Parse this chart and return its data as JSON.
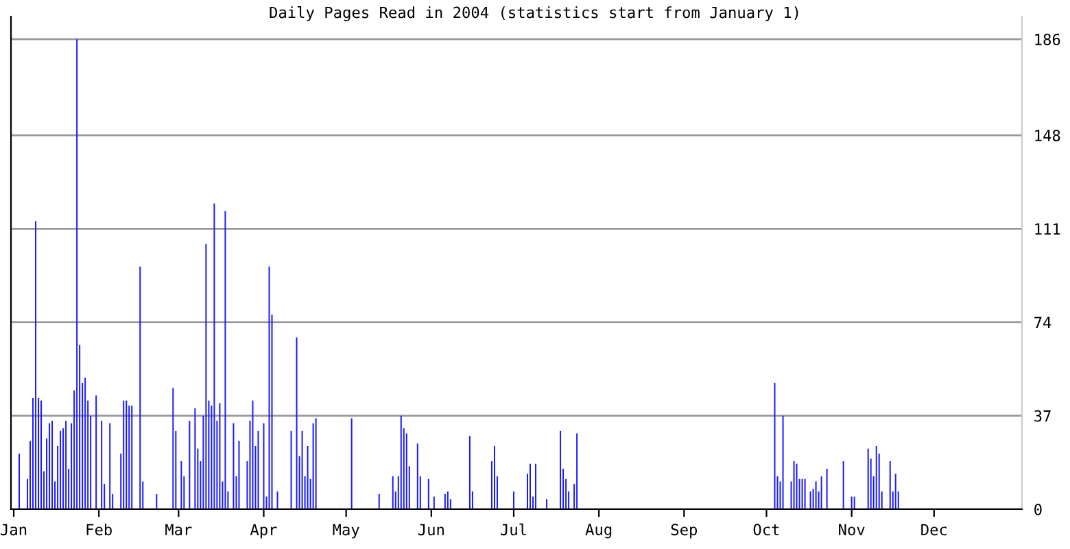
{
  "chart_data": {
    "type": "bar",
    "title": "Daily Pages Read in 2004 (statistics start from January 1)",
    "x": [
      "2004-01-01",
      "2004-01-02",
      "2004-01-03",
      "2004-01-04",
      "2004-01-05",
      "2004-01-06",
      "2004-01-07",
      "2004-01-08",
      "2004-01-09",
      "2004-01-10",
      "2004-01-11",
      "2004-01-12",
      "2004-01-13",
      "2004-01-14",
      "2004-01-15",
      "2004-01-16",
      "2004-01-17",
      "2004-01-18",
      "2004-01-19",
      "2004-01-20",
      "2004-01-21",
      "2004-01-22",
      "2004-01-23",
      "2004-01-24",
      "2004-01-25",
      "2004-01-26",
      "2004-01-27",
      "2004-01-28",
      "2004-01-29",
      "2004-01-30",
      "2004-01-31",
      "2004-02-01",
      "2004-02-02",
      "2004-02-03",
      "2004-02-04",
      "2004-02-05",
      "2004-02-06",
      "2004-02-07",
      "2004-02-08",
      "2004-02-09",
      "2004-02-10",
      "2004-02-11",
      "2004-02-12",
      "2004-02-13",
      "2004-02-14",
      "2004-02-15",
      "2004-02-16",
      "2004-02-17",
      "2004-02-18",
      "2004-02-19",
      "2004-02-20",
      "2004-02-21",
      "2004-02-22",
      "2004-02-23",
      "2004-02-24",
      "2004-02-25",
      "2004-02-26",
      "2004-02-27",
      "2004-02-28",
      "2004-02-29",
      "2004-03-01",
      "2004-03-02",
      "2004-03-03",
      "2004-03-04",
      "2004-03-05",
      "2004-03-06",
      "2004-03-07",
      "2004-03-08",
      "2004-03-09",
      "2004-03-10",
      "2004-03-11",
      "2004-03-12",
      "2004-03-13",
      "2004-03-14",
      "2004-03-15",
      "2004-03-16",
      "2004-03-17",
      "2004-03-18",
      "2004-03-19",
      "2004-03-20",
      "2004-03-21",
      "2004-03-22",
      "2004-03-23",
      "2004-03-24",
      "2004-03-25",
      "2004-03-26",
      "2004-03-27",
      "2004-03-28",
      "2004-03-29",
      "2004-03-30",
      "2004-03-31",
      "2004-04-01",
      "2004-04-02",
      "2004-04-03",
      "2004-04-04",
      "2004-04-05",
      "2004-04-06",
      "2004-04-07",
      "2004-04-08",
      "2004-04-09",
      "2004-04-10",
      "2004-04-11",
      "2004-04-12",
      "2004-04-13",
      "2004-04-14",
      "2004-04-15",
      "2004-04-16",
      "2004-04-17",
      "2004-04-18",
      "2004-04-19",
      "2004-04-20",
      "2004-04-21",
      "2004-04-22",
      "2004-04-23",
      "2004-04-24",
      "2004-04-25",
      "2004-04-26",
      "2004-04-27",
      "2004-04-28",
      "2004-04-29",
      "2004-04-30",
      "2004-05-01",
      "2004-05-02",
      "2004-05-03",
      "2004-05-04",
      "2004-05-05",
      "2004-05-06",
      "2004-05-07",
      "2004-05-08",
      "2004-05-09",
      "2004-05-10",
      "2004-05-11",
      "2004-05-12",
      "2004-05-13",
      "2004-05-14",
      "2004-05-15",
      "2004-05-16",
      "2004-05-17",
      "2004-05-18",
      "2004-05-19",
      "2004-05-20",
      "2004-05-21",
      "2004-05-22",
      "2004-05-23",
      "2004-05-24",
      "2004-05-25",
      "2004-05-26",
      "2004-05-27",
      "2004-05-28",
      "2004-05-29",
      "2004-05-30",
      "2004-05-31",
      "2004-06-01",
      "2004-06-02",
      "2004-06-03",
      "2004-06-04",
      "2004-06-05",
      "2004-06-06",
      "2004-06-07",
      "2004-06-08",
      "2004-06-09",
      "2004-06-10",
      "2004-06-11",
      "2004-06-12",
      "2004-06-13",
      "2004-06-14",
      "2004-06-15",
      "2004-06-16",
      "2004-06-17",
      "2004-06-18",
      "2004-06-19",
      "2004-06-20",
      "2004-06-21",
      "2004-06-22",
      "2004-06-23",
      "2004-06-24",
      "2004-06-25",
      "2004-06-26",
      "2004-06-27",
      "2004-06-28",
      "2004-06-29",
      "2004-06-30",
      "2004-07-01",
      "2004-07-02",
      "2004-07-03",
      "2004-07-04",
      "2004-07-05",
      "2004-07-06",
      "2004-07-07",
      "2004-07-08",
      "2004-07-09",
      "2004-07-10",
      "2004-07-11",
      "2004-07-12",
      "2004-07-13",
      "2004-07-14",
      "2004-07-15",
      "2004-07-16",
      "2004-07-17",
      "2004-07-18",
      "2004-07-19",
      "2004-07-20",
      "2004-07-21",
      "2004-07-22",
      "2004-07-23",
      "2004-07-24",
      "2004-07-25",
      "2004-07-26",
      "2004-07-27",
      "2004-07-28",
      "2004-07-29",
      "2004-07-30",
      "2004-07-31",
      "2004-08-01",
      "2004-08-02",
      "2004-08-03",
      "2004-08-04",
      "2004-08-05",
      "2004-08-06",
      "2004-08-07",
      "2004-08-08",
      "2004-08-09",
      "2004-08-10",
      "2004-08-11",
      "2004-08-12",
      "2004-08-13",
      "2004-08-14",
      "2004-08-15",
      "2004-08-16",
      "2004-08-17",
      "2004-08-18",
      "2004-08-19",
      "2004-08-20",
      "2004-08-21",
      "2004-08-22",
      "2004-08-23",
      "2004-08-24",
      "2004-08-25",
      "2004-08-26",
      "2004-08-27",
      "2004-08-28",
      "2004-08-29",
      "2004-08-30",
      "2004-08-31",
      "2004-09-01",
      "2004-09-02",
      "2004-09-03",
      "2004-09-04",
      "2004-09-05",
      "2004-09-06",
      "2004-09-07",
      "2004-09-08",
      "2004-09-09",
      "2004-09-10",
      "2004-09-11",
      "2004-09-12",
      "2004-09-13",
      "2004-09-14",
      "2004-09-15",
      "2004-09-16",
      "2004-09-17",
      "2004-09-18",
      "2004-09-19",
      "2004-09-20",
      "2004-09-21",
      "2004-09-22",
      "2004-09-23",
      "2004-09-24",
      "2004-09-25",
      "2004-09-26",
      "2004-09-27",
      "2004-09-28",
      "2004-09-29",
      "2004-09-30",
      "2004-10-01",
      "2004-10-02",
      "2004-10-03",
      "2004-10-04",
      "2004-10-05",
      "2004-10-06",
      "2004-10-07",
      "2004-10-08",
      "2004-10-09",
      "2004-10-10",
      "2004-10-11",
      "2004-10-12",
      "2004-10-13",
      "2004-10-14",
      "2004-10-15",
      "2004-10-16",
      "2004-10-17",
      "2004-10-18",
      "2004-10-19",
      "2004-10-20",
      "2004-10-21",
      "2004-10-22",
      "2004-10-23",
      "2004-10-24",
      "2004-10-25",
      "2004-10-26",
      "2004-10-27",
      "2004-10-28",
      "2004-10-29",
      "2004-10-30",
      "2004-10-31",
      "2004-11-01",
      "2004-11-02",
      "2004-11-03",
      "2004-11-04",
      "2004-11-05",
      "2004-11-06",
      "2004-11-07",
      "2004-11-08",
      "2004-11-09",
      "2004-11-10",
      "2004-11-11",
      "2004-11-12",
      "2004-11-13",
      "2004-11-14",
      "2004-11-15",
      "2004-11-16",
      "2004-11-17",
      "2004-11-18",
      "2004-11-19",
      "2004-11-20",
      "2004-11-21",
      "2004-11-22",
      "2004-11-23",
      "2004-11-24",
      "2004-11-25",
      "2004-11-26",
      "2004-11-27",
      "2004-11-28",
      "2004-11-29",
      "2004-11-30",
      "2004-12-01",
      "2004-12-02",
      "2004-12-03",
      "2004-12-04",
      "2004-12-05",
      "2004-12-06",
      "2004-12-07",
      "2004-12-08",
      "2004-12-09",
      "2004-12-10",
      "2004-12-11",
      "2004-12-12",
      "2004-12-13",
      "2004-12-14",
      "2004-12-15",
      "2004-12-16",
      "2004-12-17",
      "2004-12-18",
      "2004-12-19",
      "2004-12-20",
      "2004-12-21",
      "2004-12-22",
      "2004-12-23",
      "2004-12-24",
      "2004-12-25",
      "2004-12-26",
      "2004-12-27",
      "2004-12-28",
      "2004-12-29",
      "2004-12-30",
      "2004-12-31"
    ],
    "values": [
      0,
      0,
      22,
      0,
      0,
      12,
      27,
      44,
      114,
      44,
      43,
      15,
      28,
      34,
      35,
      11,
      25,
      31,
      32,
      35,
      16,
      34,
      47,
      186,
      65,
      50,
      52,
      43,
      37,
      0,
      45,
      0,
      35,
      10,
      0,
      34,
      6,
      0,
      0,
      22,
      43,
      43,
      41,
      41,
      0,
      0,
      96,
      11,
      0,
      0,
      0,
      0,
      6,
      0,
      0,
      0,
      0,
      0,
      48,
      31,
      0,
      19,
      13,
      0,
      35,
      0,
      40,
      24,
      19,
      37,
      105,
      43,
      41,
      121,
      35,
      42,
      11,
      118,
      7,
      0,
      34,
      13,
      27,
      0,
      0,
      19,
      35,
      43,
      25,
      31,
      0,
      34,
      5,
      96,
      77,
      0,
      7,
      0,
      0,
      0,
      0,
      31,
      0,
      68,
      21,
      31,
      13,
      25,
      12,
      34,
      36,
      0,
      0,
      0,
      0,
      0,
      0,
      0,
      0,
      0,
      0,
      0,
      0,
      36,
      0,
      0,
      0,
      0,
      0,
      0,
      0,
      0,
      0,
      6,
      0,
      0,
      0,
      0,
      13,
      7,
      13,
      37,
      32,
      30,
      17,
      0,
      0,
      26,
      13,
      0,
      0,
      12,
      0,
      5,
      0,
      0,
      0,
      6,
      7,
      4,
      0,
      0,
      0,
      0,
      0,
      0,
      29,
      7,
      0,
      0,
      0,
      0,
      0,
      0,
      19,
      25,
      13,
      0,
      0,
      0,
      0,
      0,
      7,
      0,
      0,
      0,
      0,
      14,
      18,
      5,
      18,
      0,
      0,
      0,
      4,
      0,
      0,
      0,
      0,
      31,
      16,
      12,
      7,
      0,
      10,
      30,
      0,
      0,
      0,
      0,
      0,
      0,
      0,
      0,
      0,
      0,
      0,
      0,
      0,
      0,
      0,
      0,
      0,
      0,
      0,
      0,
      0,
      0,
      0,
      0,
      0,
      0,
      0,
      0,
      0,
      0,
      0,
      0,
      0,
      0,
      0,
      0,
      0,
      0,
      0,
      0,
      0,
      0,
      0,
      0,
      0,
      0,
      0,
      0,
      0,
      0,
      0,
      0,
      0,
      0,
      0,
      0,
      0,
      0,
      0,
      0,
      0,
      0,
      0,
      0,
      0,
      0,
      0,
      0,
      0,
      0,
      0,
      50,
      13,
      11,
      37,
      0,
      0,
      11,
      19,
      18,
      12,
      12,
      12,
      0,
      7,
      8,
      11,
      7,
      13,
      0,
      16,
      0,
      0,
      0,
      0,
      0,
      19,
      0,
      0,
      5,
      5,
      0,
      0,
      0,
      0,
      24,
      20,
      13,
      25,
      22,
      7,
      0,
      0,
      19,
      7,
      14,
      7,
      0,
      0,
      0,
      0,
      0,
      0,
      0,
      0,
      0,
      0,
      0,
      0,
      0,
      0,
      0,
      0,
      0,
      0,
      0,
      0,
      0,
      0,
      0,
      0,
      0,
      0,
      0,
      0,
      0,
      0,
      0,
      0,
      0,
      0,
      0,
      0,
      0,
      0,
      0,
      0,
      0,
      0,
      0
    ],
    "color": "#1a1aff",
    "xlim": [
      "2003-12-31",
      "2005-01-02"
    ],
    "xticks": [
      {
        "value": "2004-01-01",
        "label": "Jan"
      },
      {
        "value": "2004-02-01",
        "label": "Feb"
      },
      {
        "value": "2004-03-01",
        "label": "Mar"
      },
      {
        "value": "2004-04-01",
        "label": "Apr"
      },
      {
        "value": "2004-05-01",
        "label": "May"
      },
      {
        "value": "2004-06-01",
        "label": "Jun"
      },
      {
        "value": "2004-07-01",
        "label": "Jul"
      },
      {
        "value": "2004-08-01",
        "label": "Aug"
      },
      {
        "value": "2004-09-01",
        "label": "Sep"
      },
      {
        "value": "2004-10-01",
        "label": "Oct"
      },
      {
        "value": "2004-11-01",
        "label": "Nov"
      },
      {
        "value": "2004-12-01",
        "label": "Dec"
      }
    ],
    "ylim": [
      0,
      195
    ],
    "yticks": [
      0,
      37,
      74,
      111,
      148,
      186
    ],
    "grid": "y"
  }
}
